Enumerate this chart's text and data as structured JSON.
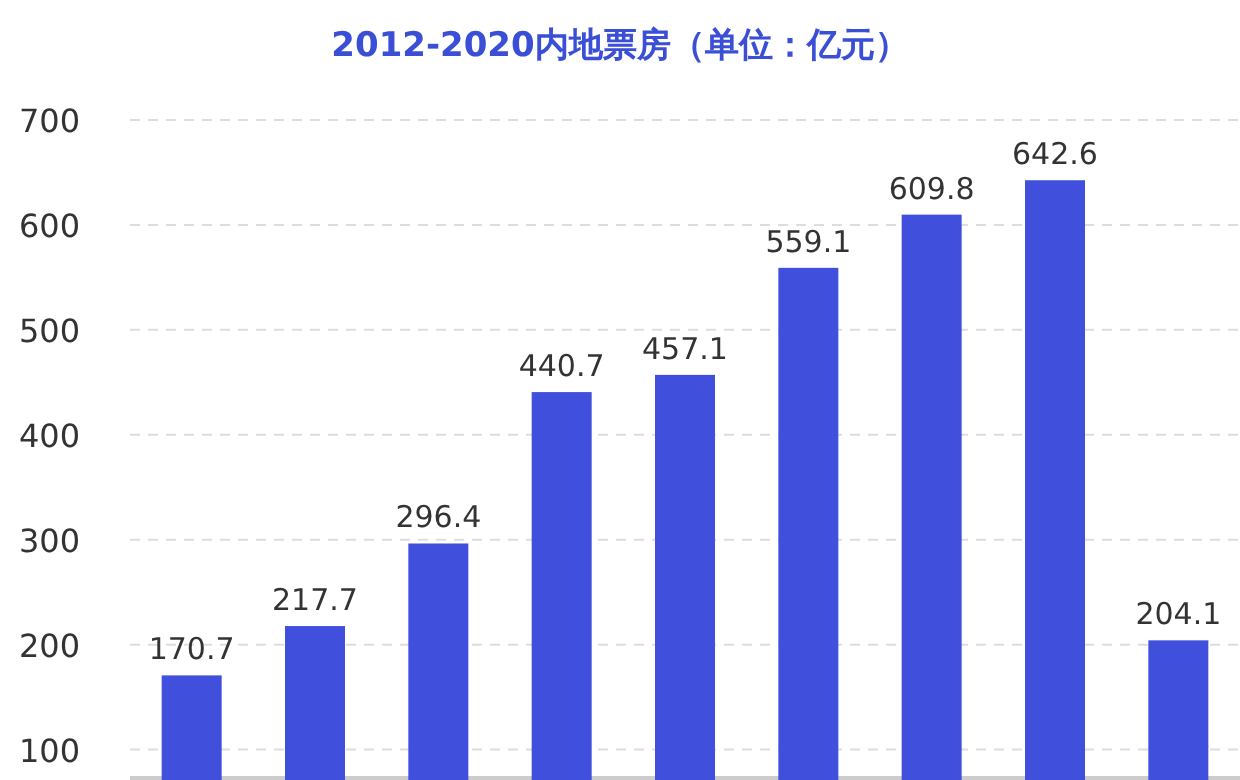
{
  "chart_data": {
    "type": "bar",
    "title": "2012-2020内地票房（单位：亿元）",
    "categories": [
      null,
      null,
      null,
      null,
      null,
      null,
      null,
      null,
      null
    ],
    "values": [
      170.7,
      217.7,
      296.4,
      440.7,
      457.1,
      559.1,
      609.8,
      642.6,
      204.1
    ],
    "color": "#4050dc",
    "ylim": [
      71,
      700
    ],
    "yticks": [
      100,
      200,
      300,
      400,
      500,
      600,
      700
    ],
    "grid": "y",
    "data_labels": true
  }
}
